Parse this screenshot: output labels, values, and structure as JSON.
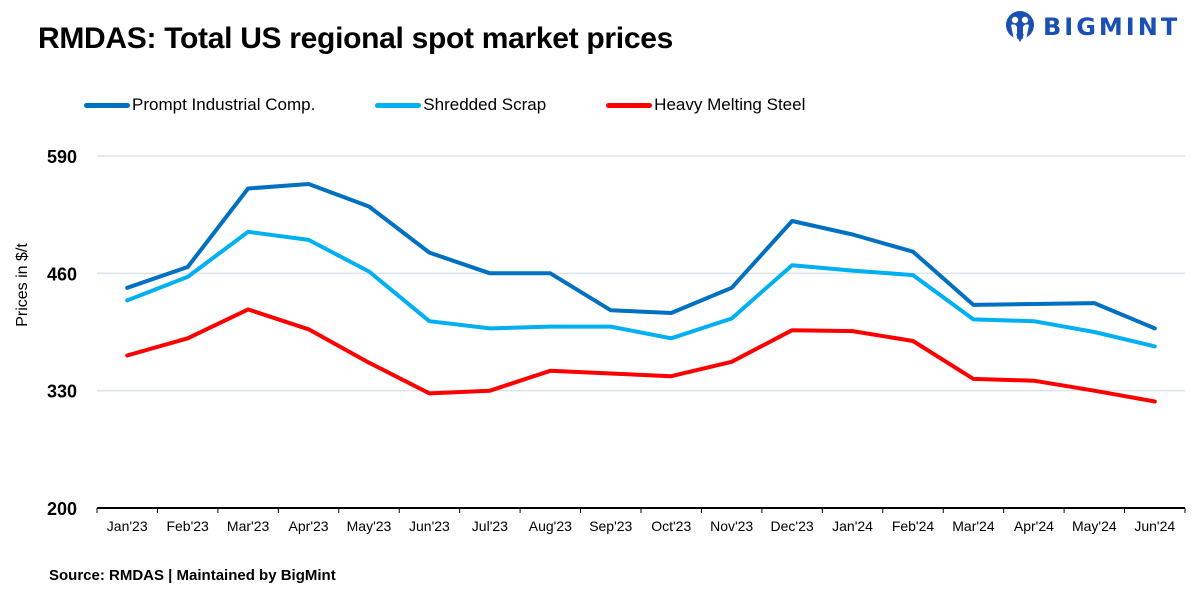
{
  "header": {
    "title": "RMDAS: Total US regional spot market prices",
    "logo_text": "BIGMINT",
    "logo_color": "#1a4fb3"
  },
  "footer": {
    "source": "Source: RMDAS | Maintained by BigMint"
  },
  "chart_data": {
    "type": "line",
    "title": "RMDAS: Total US regional spot market prices",
    "xlabel": "",
    "ylabel": "Prices in $/t",
    "ylim": [
      200,
      590
    ],
    "yticks": [
      200,
      330,
      460,
      590
    ],
    "grid": true,
    "legend_position": "top-left",
    "categories": [
      "Jan'23",
      "Feb'23",
      "Mar'23",
      "Apr'23",
      "May'23",
      "Jun'23",
      "Jul'23",
      "Aug'23",
      "Sep'23",
      "Oct'23",
      "Nov'23",
      "Dec'23",
      "Jan'24",
      "Feb'24",
      "Mar'24",
      "Apr'24",
      "May'24",
      "Jun'24"
    ],
    "series": [
      {
        "name": "Prompt Industrial Comp.",
        "color": "#0070c0",
        "values": [
          444,
          467,
          554,
          559,
          534,
          483,
          460,
          460,
          419,
          416,
          444,
          518,
          503,
          484,
          425,
          426,
          427,
          399
        ]
      },
      {
        "name": "Shredded Scrap",
        "color": "#00b0f0",
        "values": [
          430,
          456,
          506,
          497,
          462,
          407,
          399,
          401,
          401,
          388,
          410,
          469,
          463,
          458,
          409,
          407,
          395,
          379
        ]
      },
      {
        "name": "Heavy Melting Steel",
        "color": "#ff0000",
        "values": [
          369,
          388,
          420,
          398,
          361,
          327,
          330,
          352,
          349,
          346,
          362,
          397,
          396,
          385,
          343,
          341,
          330,
          318
        ]
      }
    ]
  }
}
